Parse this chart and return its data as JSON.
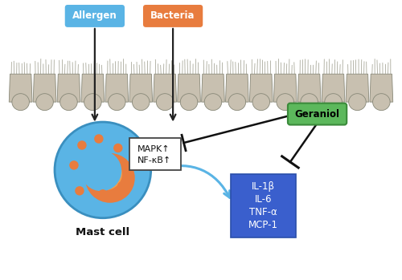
{
  "fig_width": 5.0,
  "fig_height": 3.49,
  "dpi": 100,
  "bg_color": "#ffffff",
  "allergen_label": "Allergen",
  "allergen_box_color": "#5ab4e5",
  "allergen_text_color": "#ffffff",
  "bacteria_label": "Bacteria",
  "bacteria_box_color": "#e87c3e",
  "bacteria_text_color": "#ffffff",
  "geraniol_label": "Geraniol",
  "geraniol_box_color": "#5cb85c",
  "geraniol_text_color": "#000000",
  "geraniol_border_color": "#3a8a3a",
  "mast_cell_label": "Mast cell",
  "mast_cell_color": "#5ab4e5",
  "mast_cell_outline": "#3a8fbf",
  "cytokine_box_color": "#3a5fcd",
  "cytokine_text_color": "#ffffff",
  "cytokines": [
    "IL-1β",
    "IL-6",
    "TNF-α",
    "MCP-1"
  ],
  "mapk_box_text": [
    "MAPK↑",
    "NF-κB↑"
  ],
  "arrow_color": "#222222",
  "blue_arrow_color": "#5ab4e5",
  "inhibit_line_color": "#111111",
  "epi_body_color": "#c8c0b0",
  "epi_outline_color": "#888878",
  "epi_cilia_color": "#999988",
  "granule_color": "#e87c3e",
  "nucleus_color": "#e87c3e",
  "nucleus_inner_color": "#f0a050"
}
